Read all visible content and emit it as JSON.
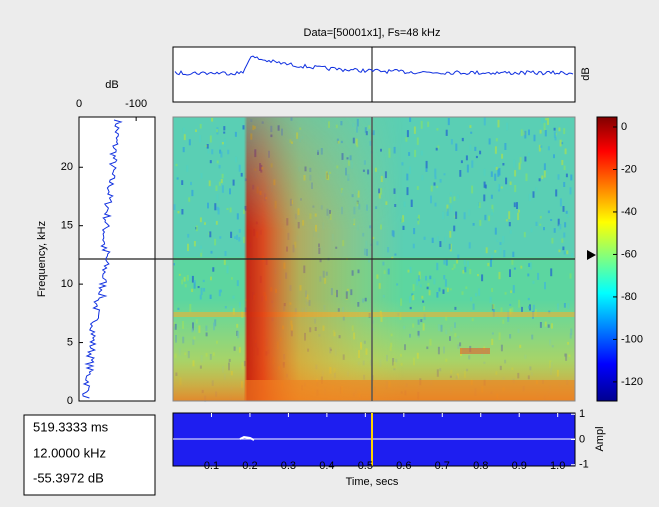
{
  "title": "Data=[50001x1], Fs=48 kHz",
  "top_panel": {
    "ylabel": "dB"
  },
  "spectrum": {
    "xlabel": "dB",
    "xlim": [
      0,
      -133
    ],
    "xticks": [
      0,
      -100
    ],
    "ylabel": "Frequency, kHz",
    "ylim": [
      0,
      24.3
    ],
    "yticks": [
      0,
      5,
      10,
      15,
      20
    ]
  },
  "colorbar": {
    "clim": [
      -129,
      4.7
    ],
    "ticks": [
      0,
      -20,
      -40,
      -60,
      -80,
      -100,
      -120
    ]
  },
  "amplitude": {
    "ylabel": "Ampl",
    "ylim": [
      -1.05,
      1.05
    ],
    "yticks": [
      1,
      0,
      -1
    ]
  },
  "time_axis": {
    "xlabel": "Time, secs",
    "xlim": [
      0,
      1.045
    ],
    "xticks": [
      0.1,
      0.2,
      0.3,
      0.4,
      0.5,
      0.6,
      0.7,
      0.8,
      0.9,
      {
        "value": 1,
        "label": "1.0"
      }
    ]
  },
  "readout": [
    "519.3333 ms",
    "12.0000 kHz",
    "-55.3972 dB"
  ]
}
